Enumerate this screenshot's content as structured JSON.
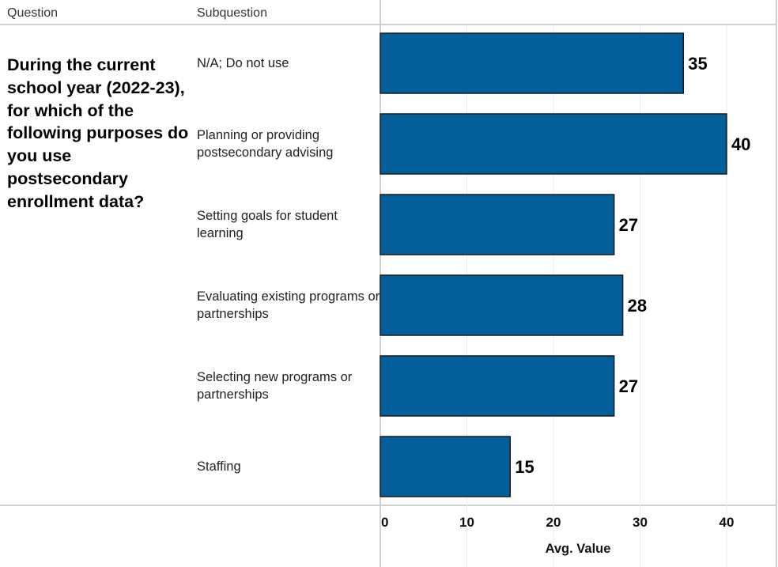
{
  "header": {
    "question_col": "Question",
    "subquestion_col": "Subquestion"
  },
  "question": "During the current school year (2022-23), for which of the following purposes do you use postsecondary enrollment data?",
  "colors": {
    "bar_fill": "#035f99",
    "bar_stroke": "#1a1a1a",
    "grid": "#ececec",
    "border": "#d0d0d0"
  },
  "chart_data": {
    "type": "bar",
    "orientation": "horizontal",
    "categories": [
      "N/A; Do not use",
      "Planning or providing postsecondary advising",
      "Setting goals for student learning",
      "Evaluating existing programs or partnerships",
      "Selecting new programs or partnerships",
      "Staffing"
    ],
    "values": [
      35,
      40,
      27,
      28,
      27,
      15
    ],
    "value_labels": [
      "35",
      "40",
      "27",
      "28",
      "27",
      "15"
    ],
    "xlabel": "Avg. Value",
    "ylabel": "Subquestion",
    "xlim": [
      0,
      45.8
    ],
    "xticks": [
      0,
      10,
      20,
      30,
      40
    ],
    "xtick_labels": [
      "0",
      "10",
      "20",
      "30",
      "40"
    ],
    "grid": true,
    "legend": "none"
  }
}
